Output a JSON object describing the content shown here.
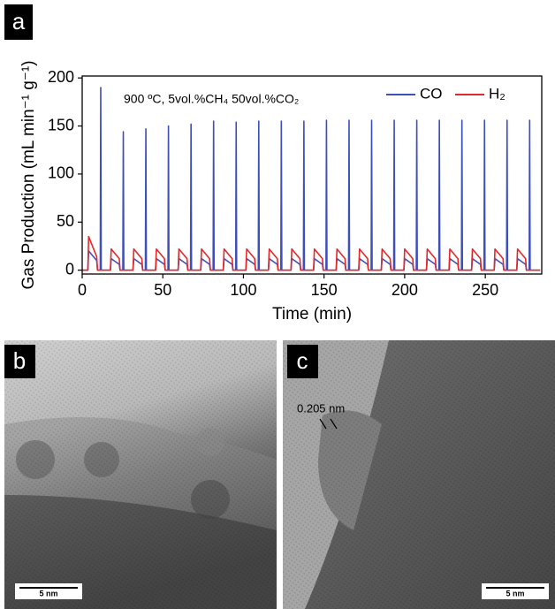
{
  "chart_data": {
    "type": "line",
    "panel_label": "a",
    "annotation": "900 ºC, 5vol.%CH₄ 50vol.%CO₂",
    "xlabel": "Time (min)",
    "ylabel": "Gas Production (mL min⁻¹ g⁻¹)",
    "xlim": [
      0,
      285
    ],
    "ylim": [
      -4,
      202
    ],
    "xticks": [
      0,
      50,
      100,
      150,
      200,
      250
    ],
    "yticks": [
      0,
      50,
      100,
      150,
      200
    ],
    "legend": "top-right",
    "x": [
      0,
      3.5,
      4,
      9,
      9.5,
      11.2,
      11.5,
      11.8,
      17.5,
      18,
      23,
      23.5,
      25.2,
      25.5,
      25.8,
      31.5,
      32,
      37,
      37.5,
      39.2,
      39.5,
      39.8,
      45.5,
      46,
      51,
      51.5,
      53.2,
      53.5,
      53.8,
      59.5,
      60,
      65,
      65.5,
      67.2,
      67.5,
      67.8,
      73.5,
      74,
      79,
      79.5,
      81.2,
      81.5,
      81.8,
      87.5,
      88,
      93,
      93.5,
      95.2,
      95.5,
      95.8,
      101.5,
      102,
      107,
      107.5,
      109.2,
      109.5,
      109.8,
      115.5,
      116,
      121,
      121.5,
      123.2,
      123.5,
      123.8,
      129.5,
      130,
      135,
      135.5,
      137.2,
      137.5,
      137.8,
      143.5,
      144,
      149,
      149.5,
      151.2,
      151.5,
      151.8,
      157.5,
      158,
      163,
      163.5,
      165.2,
      165.5,
      165.8,
      171.5,
      172,
      177,
      177.5,
      179.2,
      179.5,
      179.8,
      185.5,
      186,
      191,
      191.5,
      193.2,
      193.5,
      193.8,
      199.5,
      200,
      205,
      205.5,
      207.2,
      207.5,
      207.8,
      213.5,
      214,
      219,
      219.5,
      221.2,
      221.5,
      221.8,
      227.5,
      228,
      233,
      233.5,
      235.2,
      235.5,
      235.8,
      241.5,
      242,
      247,
      247.5,
      249.2,
      249.5,
      249.8,
      255.5,
      256,
      261,
      261.5,
      263.2,
      263.5,
      263.8,
      269.5,
      270,
      275,
      275.5,
      277.2,
      277.5,
      277.8,
      284
    ],
    "series": [
      {
        "name": "CO",
        "color": "#3f4fb8",
        "values": [
          0,
          0,
          20,
          10,
          0,
          0,
          190,
          0,
          0,
          12,
          6,
          0,
          0,
          144,
          0,
          0,
          12,
          6,
          0,
          0,
          147,
          0,
          0,
          12,
          6,
          0,
          0,
          150,
          0,
          0,
          12,
          6,
          0,
          0,
          152,
          0,
          0,
          12,
          6,
          0,
          0,
          155,
          0,
          0,
          12,
          6,
          0,
          0,
          154,
          0,
          0,
          12,
          6,
          0,
          0,
          155,
          0,
          0,
          12,
          6,
          0,
          0,
          155,
          0,
          0,
          12,
          6,
          0,
          0,
          155,
          0,
          0,
          12,
          6,
          0,
          0,
          156,
          0,
          0,
          12,
          6,
          0,
          0,
          156,
          0,
          0,
          12,
          6,
          0,
          0,
          156,
          0,
          0,
          12,
          6,
          0,
          0,
          156,
          0,
          0,
          12,
          6,
          0,
          0,
          156,
          0,
          0,
          12,
          6,
          0,
          0,
          156,
          0,
          0,
          12,
          6,
          0,
          0,
          156,
          0,
          0,
          12,
          6,
          0,
          0,
          156,
          0,
          0,
          12,
          6,
          0,
          0,
          156,
          0,
          0,
          12,
          6,
          0,
          0,
          156,
          0,
          0
        ]
      },
      {
        "name": "H₂",
        "color": "#e5282a",
        "values": [
          0,
          0,
          35,
          14,
          0,
          0,
          0,
          0,
          0,
          22,
          12,
          0,
          0,
          0,
          0,
          0,
          22,
          12,
          0,
          0,
          0,
          0,
          0,
          22,
          12,
          0,
          0,
          0,
          0,
          0,
          22,
          12,
          0,
          0,
          0,
          0,
          0,
          22,
          12,
          0,
          0,
          0,
          0,
          0,
          22,
          12,
          0,
          0,
          0,
          0,
          0,
          22,
          12,
          0,
          0,
          0,
          0,
          0,
          22,
          12,
          0,
          0,
          0,
          0,
          0,
          22,
          12,
          0,
          0,
          0,
          0,
          0,
          22,
          12,
          0,
          0,
          0,
          0,
          0,
          22,
          12,
          0,
          0,
          0,
          0,
          0,
          22,
          12,
          0,
          0,
          0,
          0,
          0,
          22,
          12,
          0,
          0,
          0,
          0,
          0,
          22,
          12,
          0,
          0,
          0,
          0,
          0,
          22,
          12,
          0,
          0,
          0,
          0,
          0,
          22,
          12,
          0,
          0,
          0,
          0,
          0,
          22,
          12,
          0,
          0,
          0,
          0,
          0,
          22,
          12,
          0,
          0,
          0,
          0,
          0,
          22,
          12,
          0,
          0,
          0,
          0,
          0
        ]
      }
    ]
  },
  "images": [
    {
      "label": "b",
      "scale_bar": "5 nm"
    },
    {
      "label": "c",
      "scale_bar": "5 nm",
      "annotation": "0.205 nm"
    }
  ]
}
